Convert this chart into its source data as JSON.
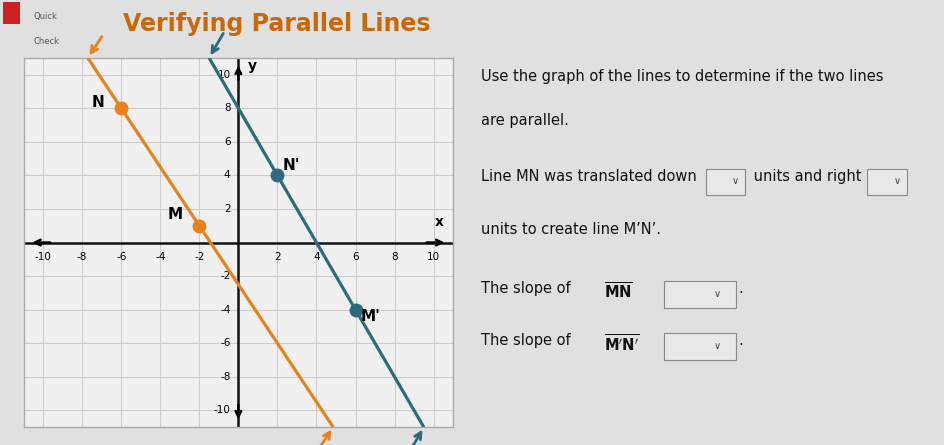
{
  "title": "Verifying Parallel Lines",
  "title_color": "#c8680a",
  "bg_color": "#e0e0e0",
  "graph_bg_color": "#f0f0f0",
  "grid_color": "#cccccc",
  "axis_color": "#111111",
  "xlim": [
    -11,
    11
  ],
  "ylim": [
    -11,
    11
  ],
  "xticks": [
    -10,
    -8,
    -6,
    -4,
    -2,
    2,
    4,
    6,
    8,
    10
  ],
  "yticks": [
    -10,
    -8,
    -6,
    -4,
    -2,
    2,
    4,
    6,
    8,
    10
  ],
  "line_MN_color": "#e8821e",
  "point_M": [
    -2,
    1
  ],
  "point_N": [
    -6,
    8
  ],
  "line_MpNp_color": "#2c6b7b",
  "point_Mp": [
    6,
    -4
  ],
  "point_Np": [
    2,
    4
  ],
  "quick_color": "#555555",
  "text_color": "#111111",
  "box_fc": "#e8e8e8",
  "box_ec": "#888888",
  "fs_title": 17,
  "fs_text": 10.5,
  "fs_tick": 7.5
}
